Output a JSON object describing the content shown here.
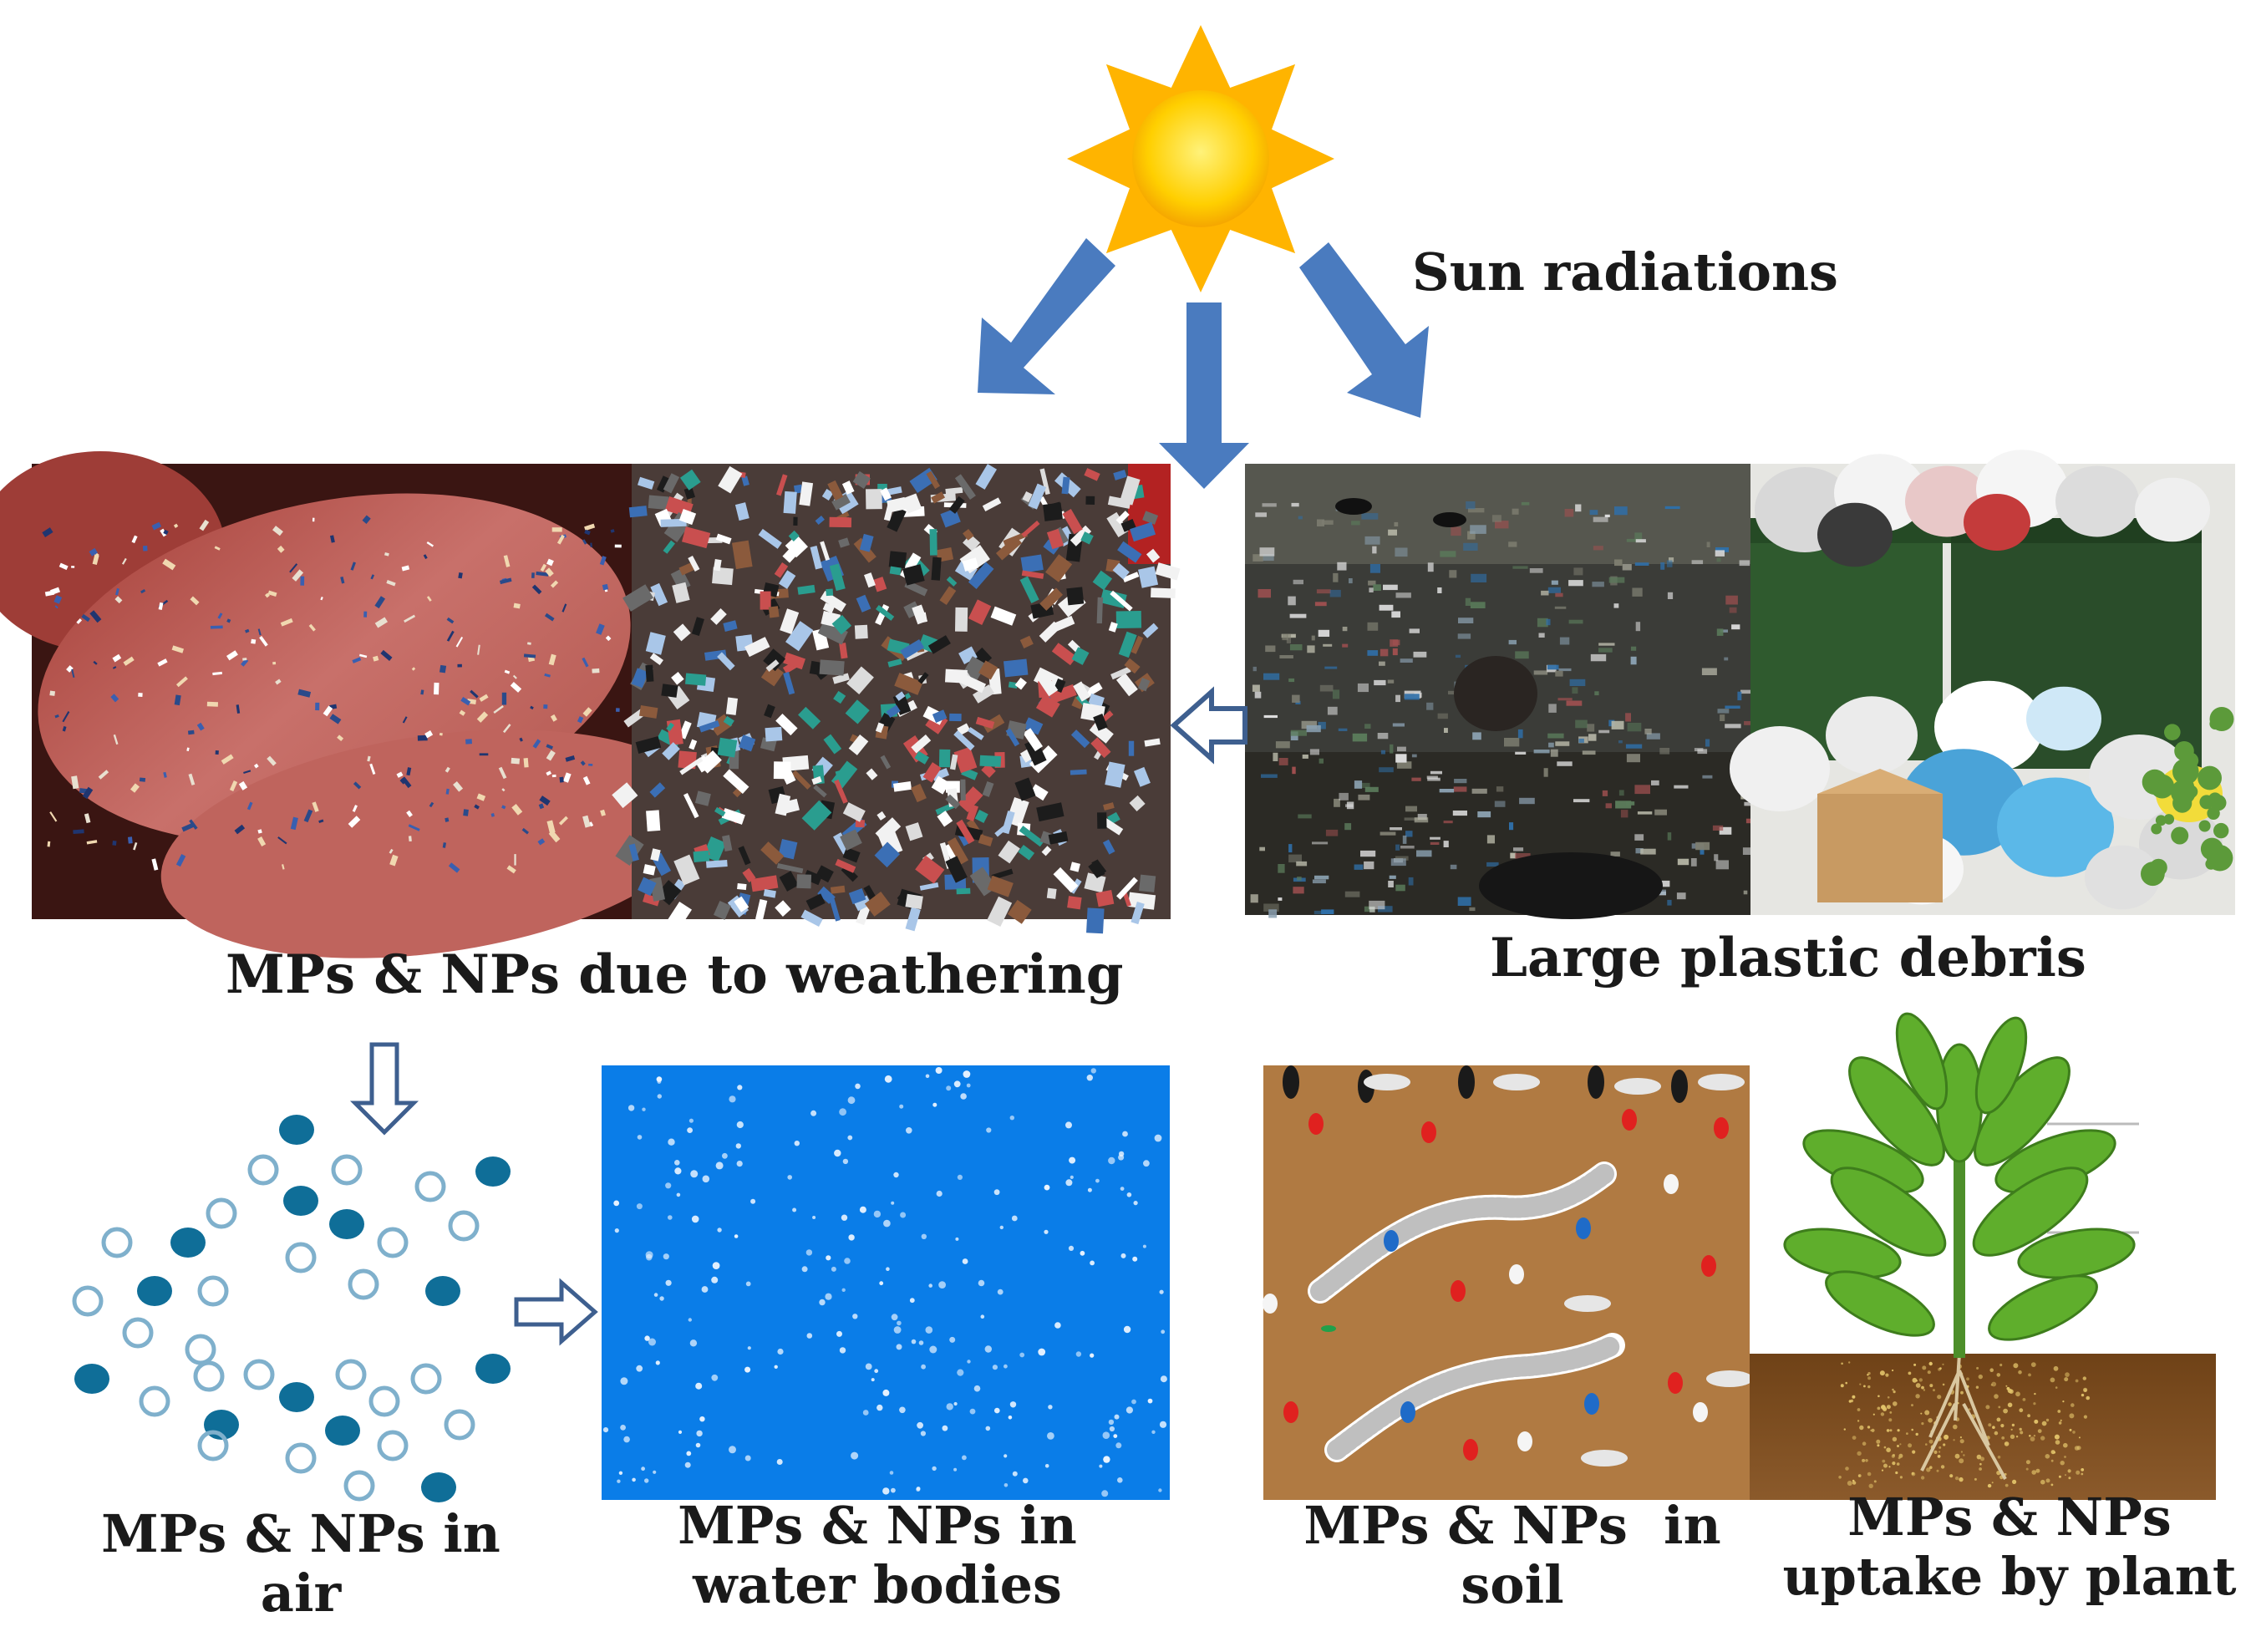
{
  "labels": {
    "sun_radiations": "Sun radiations",
    "weathering": "MPs & NPs due to weathering",
    "large_debris": "Large plastic debris",
    "air_line1": "MPs & NPs in",
    "air_line2": "air",
    "water_line1": "MPs & NPs in",
    "water_line2": "water bodies",
    "soil_line1": "MPs & NPs  in",
    "soil_line2": "soil",
    "plant_line1": "MPs & NPs",
    "plant_line2": "uptake by plant"
  },
  "colors": {
    "arrow_blue": "#4a7bbf",
    "arrow_outline": "#3e5f8f",
    "sun_core": "#ffcc00",
    "sun_ray": "#ffb400",
    "water": "#0a7de8",
    "soil": "#b07a42",
    "particle_dark": "#0f6e98",
    "plant_leaf": "#5fae2c",
    "plant_soil": "#7a4a1c"
  }
}
